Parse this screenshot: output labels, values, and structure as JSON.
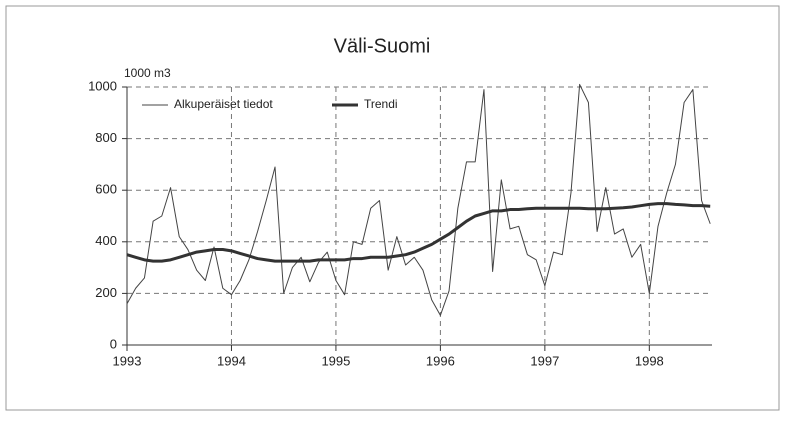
{
  "chart_data": {
    "type": "line",
    "title": "Väli-Suomi",
    "y_label": "1000 m3",
    "x": [
      1993.0,
      1993.083,
      1993.167,
      1993.25,
      1993.333,
      1993.417,
      1993.5,
      1993.583,
      1993.667,
      1993.75,
      1993.833,
      1993.917,
      1994.0,
      1994.083,
      1994.167,
      1994.25,
      1994.333,
      1994.417,
      1994.5,
      1994.583,
      1994.667,
      1994.75,
      1994.833,
      1994.917,
      1995.0,
      1995.083,
      1995.167,
      1995.25,
      1995.333,
      1995.417,
      1995.5,
      1995.583,
      1995.667,
      1995.75,
      1995.833,
      1995.917,
      1996.0,
      1996.083,
      1996.167,
      1996.25,
      1996.333,
      1996.417,
      1996.5,
      1996.583,
      1996.667,
      1996.75,
      1996.833,
      1996.917,
      1997.0,
      1997.083,
      1997.167,
      1997.25,
      1997.333,
      1997.417,
      1997.5,
      1997.583,
      1997.667,
      1997.75,
      1997.833,
      1997.917,
      1998.0,
      1998.083,
      1998.167,
      1998.25,
      1998.333,
      1998.417,
      1998.5,
      1998.583
    ],
    "series": [
      {
        "name": "Alkuperäiset tiedot",
        "color": "#444444",
        "width": 1,
        "values": [
          160,
          220,
          260,
          480,
          500,
          610,
          420,
          370,
          290,
          250,
          380,
          220,
          195,
          250,
          330,
          440,
          560,
          690,
          200,
          300,
          340,
          245,
          320,
          360,
          250,
          195,
          400,
          390,
          530,
          560,
          290,
          420,
          310,
          340,
          290,
          175,
          115,
          210,
          530,
          710,
          710,
          990,
          285,
          640,
          450,
          460,
          350,
          330,
          230,
          360,
          350,
          590,
          1010,
          940,
          440,
          610,
          430,
          450,
          340,
          390,
          200,
          460,
          590,
          700,
          940,
          990,
          560,
          470
        ]
      },
      {
        "name": "Trendi",
        "color": "#333333",
        "width": 3,
        "values": [
          350,
          340,
          330,
          325,
          325,
          330,
          340,
          350,
          360,
          365,
          370,
          370,
          365,
          355,
          345,
          335,
          330,
          325,
          325,
          325,
          325,
          325,
          330,
          330,
          330,
          330,
          335,
          335,
          340,
          340,
          340,
          345,
          350,
          360,
          375,
          390,
          410,
          430,
          455,
          480,
          500,
          510,
          520,
          520,
          525,
          525,
          528,
          530,
          530,
          530,
          530,
          530,
          530,
          528,
          528,
          528,
          530,
          532,
          535,
          540,
          545,
          548,
          548,
          545,
          543,
          540,
          540,
          538
        ]
      }
    ],
    "xlim": [
      1993,
      1998.6
    ],
    "xticks": [
      1993,
      1994,
      1995,
      1996,
      1997,
      1998
    ],
    "ylim": [
      0,
      1000
    ],
    "yticks": [
      0,
      200,
      400,
      600,
      800,
      1000
    ],
    "grid": true,
    "legend": "top-left"
  }
}
